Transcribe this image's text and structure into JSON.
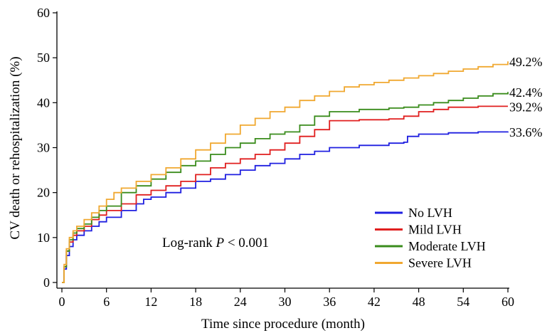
{
  "chart_data": {
    "type": "line",
    "title": "",
    "xlabel": "Time since procedure (month)",
    "ylabel": "CV death or rehospitalization (%)",
    "xlim": [
      0,
      60
    ],
    "ylim": [
      0,
      60
    ],
    "xticks": [
      0,
      6,
      12,
      18,
      24,
      30,
      36,
      42,
      48,
      54,
      60
    ],
    "yticks": [
      0,
      10,
      20,
      30,
      40,
      50,
      60
    ],
    "grid": false,
    "legend_position": "bottom-right",
    "annotation": {
      "prefix": "Log-rank ",
      "italic": "P",
      "suffix": " < 0.001"
    },
    "series": [
      {
        "name": "No LVH",
        "color": "#1f1fe0",
        "end_label": "33.6%",
        "points": [
          [
            0,
            0
          ],
          [
            0.3,
            3
          ],
          [
            0.6,
            6
          ],
          [
            1,
            8
          ],
          [
            1.5,
            9.5
          ],
          [
            2,
            10.5
          ],
          [
            3,
            11.5
          ],
          [
            4,
            12.5
          ],
          [
            5,
            13.5
          ],
          [
            6,
            14.5
          ],
          [
            8,
            16
          ],
          [
            10,
            17.5
          ],
          [
            11,
            18.5
          ],
          [
            12,
            19
          ],
          [
            14,
            20
          ],
          [
            16,
            21
          ],
          [
            18,
            22.5
          ],
          [
            20,
            23
          ],
          [
            22,
            24
          ],
          [
            24,
            25
          ],
          [
            26,
            26
          ],
          [
            28,
            26.5
          ],
          [
            30,
            27.5
          ],
          [
            32,
            28.5
          ],
          [
            34,
            29.2
          ],
          [
            36,
            30
          ],
          [
            40,
            30.5
          ],
          [
            44,
            31
          ],
          [
            46,
            31.2
          ],
          [
            46.5,
            32.5
          ],
          [
            48,
            33
          ],
          [
            52,
            33.3
          ],
          [
            56,
            33.5
          ],
          [
            60,
            33.6
          ]
        ]
      },
      {
        "name": "Mild LVH",
        "color": "#e01f1f",
        "end_label": "39.2%",
        "points": [
          [
            0,
            0
          ],
          [
            0.3,
            3.5
          ],
          [
            0.6,
            7
          ],
          [
            1,
            9
          ],
          [
            1.5,
            10.5
          ],
          [
            2,
            11.5
          ],
          [
            3,
            12.5
          ],
          [
            4,
            14
          ],
          [
            5,
            15
          ],
          [
            6,
            16
          ],
          [
            8,
            17.5
          ],
          [
            10,
            19.5
          ],
          [
            12,
            20.5
          ],
          [
            14,
            21.5
          ],
          [
            16,
            22.5
          ],
          [
            18,
            24
          ],
          [
            20,
            25.5
          ],
          [
            22,
            26.5
          ],
          [
            24,
            27.5
          ],
          [
            26,
            28.5
          ],
          [
            28,
            29.5
          ],
          [
            30,
            31
          ],
          [
            32,
            32.5
          ],
          [
            34,
            34
          ],
          [
            36,
            36
          ],
          [
            40,
            36.2
          ],
          [
            44,
            36.4
          ],
          [
            46,
            37
          ],
          [
            48,
            38
          ],
          [
            50,
            38.5
          ],
          [
            52,
            39
          ],
          [
            56,
            39.2
          ],
          [
            60,
            39.2
          ]
        ]
      },
      {
        "name": "Moderate LVH",
        "color": "#3a8c1c",
        "end_label": "42.4%",
        "points": [
          [
            0,
            0
          ],
          [
            0.3,
            3.5
          ],
          [
            0.6,
            7
          ],
          [
            1,
            9.5
          ],
          [
            1.5,
            11
          ],
          [
            2,
            12
          ],
          [
            3,
            13
          ],
          [
            4,
            14.5
          ],
          [
            5,
            16
          ],
          [
            6,
            17
          ],
          [
            8,
            20
          ],
          [
            10,
            21.5
          ],
          [
            12,
            23
          ],
          [
            14,
            24.5
          ],
          [
            16,
            26
          ],
          [
            18,
            27
          ],
          [
            20,
            28.5
          ],
          [
            22,
            30
          ],
          [
            24,
            31
          ],
          [
            26,
            32
          ],
          [
            28,
            33
          ],
          [
            30,
            33.5
          ],
          [
            32,
            35
          ],
          [
            34,
            37
          ],
          [
            36,
            38
          ],
          [
            40,
            38.5
          ],
          [
            44,
            38.8
          ],
          [
            46,
            39
          ],
          [
            48,
            39.5
          ],
          [
            50,
            40
          ],
          [
            52,
            40.5
          ],
          [
            54,
            41
          ],
          [
            56,
            41.5
          ],
          [
            58,
            42
          ],
          [
            60,
            42.4
          ]
        ]
      },
      {
        "name": "Severe LVH",
        "color": "#f0a830",
        "end_label": "49.2%",
        "points": [
          [
            0,
            0
          ],
          [
            0.3,
            4
          ],
          [
            0.6,
            7.5
          ],
          [
            1,
            10
          ],
          [
            1.5,
            11.5
          ],
          [
            2,
            12.5
          ],
          [
            3,
            14
          ],
          [
            4,
            15.5
          ],
          [
            5,
            17
          ],
          [
            6,
            18.5
          ],
          [
            7,
            20
          ],
          [
            8,
            21
          ],
          [
            10,
            22.5
          ],
          [
            12,
            24
          ],
          [
            14,
            25.5
          ],
          [
            16,
            27.5
          ],
          [
            18,
            29.5
          ],
          [
            20,
            31
          ],
          [
            22,
            33
          ],
          [
            24,
            35
          ],
          [
            26,
            36.5
          ],
          [
            28,
            38
          ],
          [
            30,
            39
          ],
          [
            32,
            40.5
          ],
          [
            34,
            41.5
          ],
          [
            36,
            42.5
          ],
          [
            38,
            43.5
          ],
          [
            40,
            44
          ],
          [
            42,
            44.5
          ],
          [
            44,
            45
          ],
          [
            46,
            45.5
          ],
          [
            48,
            46
          ],
          [
            50,
            46.5
          ],
          [
            52,
            47
          ],
          [
            54,
            47.5
          ],
          [
            56,
            48
          ],
          [
            58,
            48.5
          ],
          [
            60,
            49.2
          ]
        ]
      }
    ]
  }
}
